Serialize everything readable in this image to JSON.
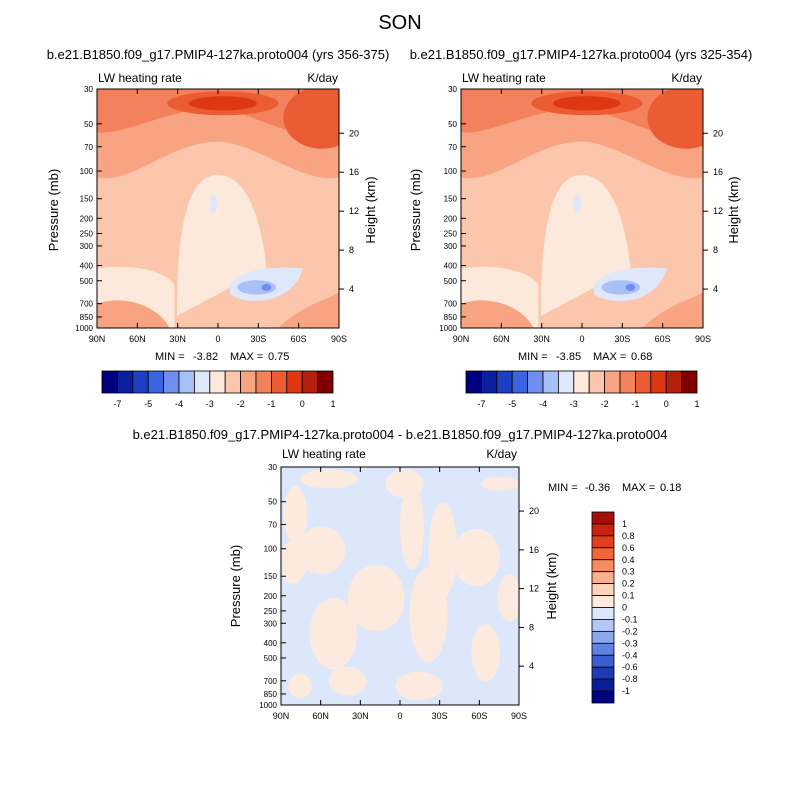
{
  "figure": {
    "title": "SON"
  },
  "chart_data": [
    {
      "type": "heatmap",
      "subtitle": "b.e21.B1850.f09_g17.PMIP4-127ka.proto004 (yrs 356-375)",
      "left_label": "LW heating rate",
      "right_label": "K/day",
      "ylabel": "Pressure (mb)",
      "ylabel_right": "Height (km)",
      "x_ticks": [
        "90N",
        "60N",
        "30N",
        "0",
        "30S",
        "60S",
        "90S"
      ],
      "y_ticks": [
        "30",
        "50",
        "70",
        "100",
        "150",
        "200",
        "250",
        "300",
        "400",
        "500",
        "700",
        "850",
        "1000"
      ],
      "height_ticks": [
        "20",
        "16",
        "12",
        "8",
        "4"
      ],
      "stats": {
        "min_label": "MIN =",
        "min": "-3.82",
        "max_label": "MAX =",
        "max": "0.75"
      },
      "colorbar": {
        "levels": [
          "-7",
          "-5",
          "-4",
          "-3",
          "-2",
          "-1",
          "0",
          "1"
        ],
        "colors": [
          "#00007f",
          "#0a1fa0",
          "#1d3fc4",
          "#3c64e0",
          "#6f8ef0",
          "#a8bff8",
          "#dfe8fb",
          "#fde9dc",
          "#fbc6ac",
          "#f8a482",
          "#f3815c",
          "#ec5c34",
          "#dd3812",
          "#b5200c",
          "#7f0000"
        ]
      }
    },
    {
      "type": "heatmap",
      "subtitle": "b.e21.B1850.f09_g17.PMIP4-127ka.proto004 (yrs 325-354)",
      "left_label": "LW heating rate",
      "right_label": "K/day",
      "ylabel": "Pressure (mb)",
      "ylabel_right": "Height (km)",
      "x_ticks": [
        "90N",
        "60N",
        "30N",
        "0",
        "30S",
        "60S",
        "90S"
      ],
      "y_ticks": [
        "30",
        "50",
        "70",
        "100",
        "150",
        "200",
        "250",
        "300",
        "400",
        "500",
        "700",
        "850",
        "1000"
      ],
      "height_ticks": [
        "20",
        "16",
        "12",
        "8",
        "4"
      ],
      "stats": {
        "min_label": "MIN =",
        "min": "-3.85",
        "max_label": "MAX =",
        "max": "0.68"
      },
      "colorbar": {
        "levels": [
          "-7",
          "-5",
          "-4",
          "-3",
          "-2",
          "-1",
          "0",
          "1"
        ],
        "colors": [
          "#00007f",
          "#0a1fa0",
          "#1d3fc4",
          "#3c64e0",
          "#6f8ef0",
          "#a8bff8",
          "#dfe8fb",
          "#fde9dc",
          "#fbc6ac",
          "#f8a482",
          "#f3815c",
          "#ec5c34",
          "#dd3812",
          "#b5200c",
          "#7f0000"
        ]
      }
    },
    {
      "type": "heatmap",
      "subtitle": "b.e21.B1850.f09_g17.PMIP4-127ka.proto004 - b.e21.B1850.f09_g17.PMIP4-127ka.proto004",
      "left_label": "LW heating rate",
      "right_label": "K/day",
      "ylabel": "Pressure (mb)",
      "ylabel_right": "Height (km)",
      "x_ticks": [
        "90N",
        "60N",
        "30N",
        "0",
        "30S",
        "60S",
        "90S"
      ],
      "y_ticks": [
        "30",
        "50",
        "70",
        "100",
        "150",
        "200",
        "250",
        "300",
        "400",
        "500",
        "700",
        "850",
        "1000"
      ],
      "height_ticks": [
        "20",
        "16",
        "12",
        "8",
        "4"
      ],
      "stats": {
        "min_label": "MIN =",
        "min": "-0.36",
        "max_label": "MAX =",
        "max": "0.18"
      },
      "colorbar": {
        "levels": [
          "1",
          "0.8",
          "0.6",
          "0.4",
          "0.3",
          "0.2",
          "0.1",
          "0",
          "-0.1",
          "-0.2",
          "-0.3",
          "-0.4",
          "-0.6",
          "-0.8",
          "-1"
        ],
        "colors": [
          "#a50f0a",
          "#cb2210",
          "#e2401c",
          "#f0663a",
          "#f68d62",
          "#f9b08c",
          "#fcd4bc",
          "#fdeadf",
          "#dce7fb",
          "#b4c8f6",
          "#8ba7ee",
          "#5f83e2",
          "#3a5fd2",
          "#1c3cb6",
          "#0a1e96",
          "#00007f"
        ]
      }
    }
  ]
}
